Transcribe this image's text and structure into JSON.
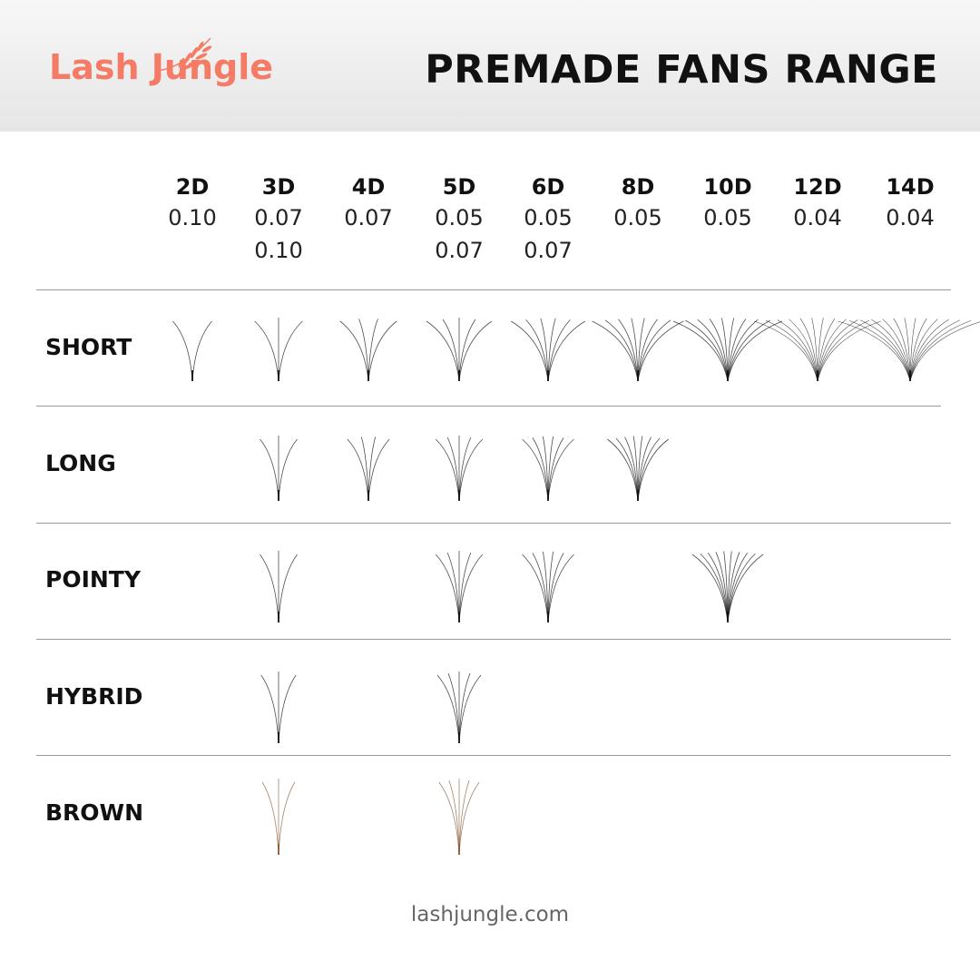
{
  "brand": {
    "logo_text": "Lash Jungle",
    "color": "#f47c66"
  },
  "title": "PREMADE FANS RANGE",
  "columns": [
    {
      "label": "2D",
      "thickness": [
        "0.10"
      ]
    },
    {
      "label": "3D",
      "thickness": [
        "0.07",
        "0.10"
      ]
    },
    {
      "label": "4D",
      "thickness": [
        "0.07"
      ]
    },
    {
      "label": "5D",
      "thickness": [
        "0.05",
        "0.07"
      ]
    },
    {
      "label": "6D",
      "thickness": [
        "0.05",
        "0.07"
      ]
    },
    {
      "label": "8D",
      "thickness": [
        "0.05"
      ]
    },
    {
      "label": "10D",
      "thickness": [
        "0.05"
      ]
    },
    {
      "label": "12D",
      "thickness": [
        "0.04"
      ]
    },
    {
      "label": "14D",
      "thickness": [
        "0.04"
      ]
    }
  ],
  "rows": [
    {
      "label": "SHORT",
      "style": "short",
      "color": "#111111",
      "available": [
        "2D",
        "3D",
        "4D",
        "5D",
        "6D",
        "8D",
        "10D",
        "12D",
        "14D"
      ]
    },
    {
      "label": "LONG",
      "style": "long",
      "color": "#111111",
      "available": [
        "3D",
        "4D",
        "5D",
        "6D",
        "8D"
      ]
    },
    {
      "label": "POINTY",
      "style": "pointy",
      "color": "#111111",
      "available": [
        "3D",
        "5D",
        "6D",
        "10D"
      ]
    },
    {
      "label": "HYBRID",
      "style": "hybrid",
      "color": "#111111",
      "available": [
        "3D",
        "5D"
      ]
    },
    {
      "label": "BROWN",
      "style": "brown",
      "color": "#8a5a36",
      "available": [
        "3D",
        "5D"
      ]
    }
  ],
  "footer": "lashjungle.com"
}
